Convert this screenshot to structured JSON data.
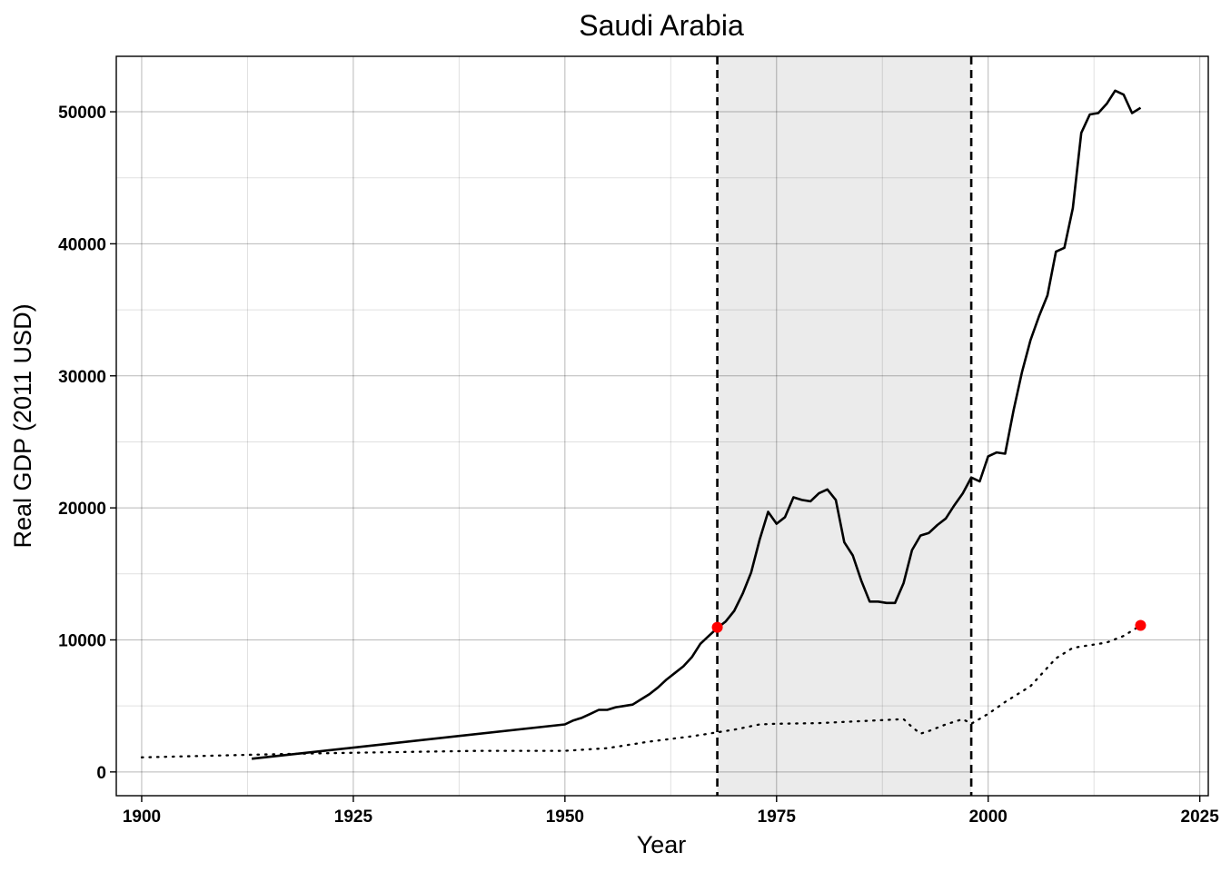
{
  "chart_data": {
    "type": "line",
    "title": "Saudi Arabia",
    "xlabel": "Year",
    "ylabel": "Real GDP (2011 USD)",
    "xlim": [
      1897,
      2026
    ],
    "ylim": [
      -1800,
      54200
    ],
    "x_ticks": [
      1900,
      1925,
      1950,
      1975,
      2000,
      2025
    ],
    "y_ticks": [
      0,
      10000,
      20000,
      30000,
      40000,
      50000
    ],
    "x_minor": [
      1912.5,
      1937.5,
      1962.5,
      1987.5,
      2012.5
    ],
    "y_minor": [
      5000,
      15000,
      25000,
      35000,
      45000
    ],
    "grid": true,
    "legend": "none",
    "shaded_period": {
      "start": 1968,
      "end": 1998,
      "color": "#ebebeb"
    },
    "vlines": [
      1968,
      1998
    ],
    "series": [
      {
        "style": "solid",
        "color": "#000000",
        "points": [
          [
            1913,
            1000
          ],
          [
            1950,
            3600
          ],
          [
            1951,
            3900
          ],
          [
            1952,
            4100
          ],
          [
            1953,
            4400
          ],
          [
            1954,
            4700
          ],
          [
            1955,
            4700
          ],
          [
            1956,
            4900
          ],
          [
            1957,
            5000
          ],
          [
            1958,
            5100
          ],
          [
            1959,
            5500
          ],
          [
            1960,
            5900
          ],
          [
            1961,
            6400
          ],
          [
            1962,
            7000
          ],
          [
            1963,
            7500
          ],
          [
            1964,
            8000
          ],
          [
            1965,
            8700
          ],
          [
            1966,
            9700
          ],
          [
            1967,
            10300
          ],
          [
            1968,
            10900
          ],
          [
            1969,
            11400
          ],
          [
            1970,
            12200
          ],
          [
            1971,
            13500
          ],
          [
            1972,
            15100
          ],
          [
            1973,
            17600
          ],
          [
            1974,
            19700
          ],
          [
            1975,
            18800
          ],
          [
            1976,
            19300
          ],
          [
            1977,
            20800
          ],
          [
            1978,
            20600
          ],
          [
            1979,
            20500
          ],
          [
            1980,
            21100
          ],
          [
            1981,
            21400
          ],
          [
            1982,
            20600
          ],
          [
            1983,
            17400
          ],
          [
            1984,
            16400
          ],
          [
            1985,
            14500
          ],
          [
            1986,
            12900
          ],
          [
            1987,
            12900
          ],
          [
            1988,
            12800
          ],
          [
            1989,
            12800
          ],
          [
            1990,
            14300
          ],
          [
            1991,
            16800
          ],
          [
            1992,
            17900
          ],
          [
            1993,
            18100
          ],
          [
            1994,
            18700
          ],
          [
            1995,
            19200
          ],
          [
            1996,
            20200
          ],
          [
            1997,
            21100
          ],
          [
            1998,
            22300
          ],
          [
            1999,
            22000
          ],
          [
            2000,
            23900
          ],
          [
            2001,
            24200
          ],
          [
            2002,
            24100
          ],
          [
            2003,
            27400
          ],
          [
            2004,
            30300
          ],
          [
            2005,
            32700
          ],
          [
            2006,
            34500
          ],
          [
            2007,
            36100
          ],
          [
            2008,
            39400
          ],
          [
            2009,
            39700
          ],
          [
            2010,
            42700
          ],
          [
            2011,
            48400
          ],
          [
            2012,
            49800
          ],
          [
            2013,
            49900
          ],
          [
            2014,
            50600
          ],
          [
            2015,
            51600
          ],
          [
            2016,
            51300
          ],
          [
            2017,
            49900
          ],
          [
            2018,
            50300
          ]
        ]
      },
      {
        "style": "dotted",
        "color": "#000000",
        "points": [
          [
            1900,
            1100
          ],
          [
            1913,
            1300
          ],
          [
            1920,
            1400
          ],
          [
            1930,
            1500
          ],
          [
            1940,
            1600
          ],
          [
            1950,
            1600
          ],
          [
            1955,
            1800
          ],
          [
            1960,
            2300
          ],
          [
            1965,
            2700
          ],
          [
            1968,
            3000
          ],
          [
            1970,
            3200
          ],
          [
            1973,
            3600
          ],
          [
            1975,
            3650
          ],
          [
            1980,
            3700
          ],
          [
            1985,
            3850
          ],
          [
            1990,
            4000
          ],
          [
            1991,
            3400
          ],
          [
            1992,
            2900
          ],
          [
            1993,
            3100
          ],
          [
            1995,
            3600
          ],
          [
            1997,
            4000
          ],
          [
            1998,
            3650
          ],
          [
            2000,
            4400
          ],
          [
            2002,
            5300
          ],
          [
            2005,
            6500
          ],
          [
            2008,
            8600
          ],
          [
            2010,
            9400
          ],
          [
            2012,
            9600
          ],
          [
            2014,
            9800
          ],
          [
            2016,
            10300
          ],
          [
            2018,
            11100
          ]
        ]
      }
    ],
    "markers": [
      {
        "x": 1968,
        "y": 10950,
        "color": "#ff0000"
      },
      {
        "x": 2018,
        "y": 11100,
        "color": "#ff0000"
      }
    ]
  }
}
